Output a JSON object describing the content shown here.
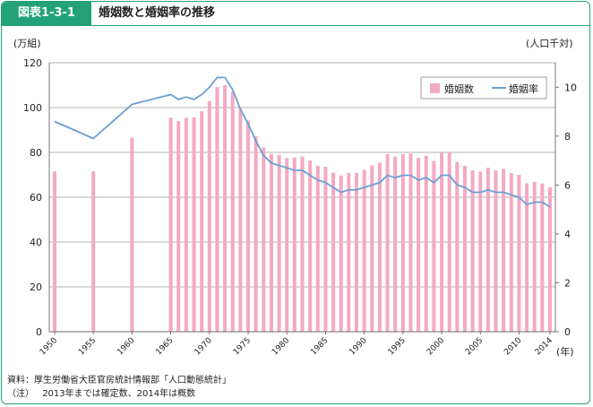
{
  "header": {
    "figure_label": "図表1-3-1",
    "title": "婚姻数と婚姻率の推移"
  },
  "colors": {
    "accent": "#23a27a",
    "bar": "#f4a9c4",
    "line": "#6b9fd4"
  },
  "footer": {
    "source": "資料：厚生労働省大臣官房統計情報部「人口動態統計」",
    "note_label": "（注）",
    "note": "2013年までは確定数、2014年は概数"
  },
  "chart_data": {
    "type": "bar+line",
    "title": "",
    "y_left_unit": "(万組)",
    "y_right_unit": "(人口千対)",
    "x_unit": "(年)",
    "ylim_left": [
      0,
      120
    ],
    "yticks_left": [
      "0",
      "20",
      "40",
      "60",
      "80",
      "100",
      "120"
    ],
    "ylim_right": [
      0,
      11
    ],
    "yticks_right": [
      "0",
      "2",
      "4",
      "6",
      "8",
      "10"
    ],
    "x_tick_labels": [
      "1950",
      "1955",
      "1960",
      "1965",
      "1970",
      "1975",
      "1980",
      "1985",
      "1990",
      "1995",
      "2000",
      "2005",
      "2010",
      "2014"
    ],
    "legend_position": "top-right",
    "grid": "horizontal",
    "years": [
      1950,
      1951,
      1952,
      1953,
      1954,
      1955,
      1956,
      1957,
      1958,
      1959,
      1960,
      1961,
      1962,
      1963,
      1964,
      1965,
      1966,
      1967,
      1968,
      1969,
      1970,
      1971,
      1972,
      1973,
      1974,
      1975,
      1976,
      1977,
      1978,
      1979,
      1980,
      1981,
      1982,
      1983,
      1984,
      1985,
      1986,
      1987,
      1988,
      1989,
      1990,
      1991,
      1992,
      1993,
      1994,
      1995,
      1996,
      1997,
      1998,
      1999,
      2000,
      2001,
      2002,
      2003,
      2004,
      2005,
      2006,
      2007,
      2008,
      2009,
      2010,
      2011,
      2012,
      2013,
      2014
    ],
    "series": [
      {
        "name": "婚姻数",
        "kind": "bar",
        "axis": "left",
        "plot_years": [
          1950,
          1955,
          1960,
          1965,
          1966,
          1967,
          1968,
          1969,
          1970,
          1971,
          1972,
          1973,
          1974,
          1975,
          1976,
          1977,
          1978,
          1979,
          1980,
          1981,
          1982,
          1983,
          1984,
          1985,
          1986,
          1987,
          1988,
          1989,
          1990,
          1991,
          1992,
          1993,
          1994,
          1995,
          1996,
          1997,
          1998,
          1999,
          2000,
          2001,
          2002,
          2003,
          2004,
          2005,
          2006,
          2007,
          2008,
          2009,
          2010,
          2011,
          2012,
          2013,
          2014
        ],
        "values": [
          71.5,
          71.5,
          86.6,
          95.5,
          94.0,
          95.4,
          95.6,
          98.4,
          102.9,
          109.1,
          110.0,
          107.2,
          100.1,
          94.2,
          87.2,
          82.2,
          79.3,
          78.9,
          77.5,
          77.7,
          78.2,
          76.3,
          74.0,
          73.6,
          71.0,
          69.7,
          70.8,
          70.8,
          72.2,
          74.2,
          75.4,
          79.2,
          78.2,
          79.2,
          79.5,
          77.6,
          78.5,
          76.2,
          79.8,
          80.0,
          75.7,
          74.0,
          72.0,
          71.4,
          73.1,
          72.0,
          72.6,
          70.8,
          70.0,
          66.2,
          66.9,
          66.1,
          64.4
        ]
      },
      {
        "name": "婚姻率",
        "kind": "line",
        "axis": "right",
        "values": [
          8.6,
          7.9,
          9.3,
          9.7,
          9.5,
          9.6,
          9.5,
          9.7,
          10.0,
          10.4,
          10.4,
          9.9,
          9.1,
          8.5,
          7.8,
          7.2,
          6.9,
          6.8,
          6.7,
          6.6,
          6.6,
          6.4,
          6.2,
          6.1,
          5.9,
          5.7,
          5.8,
          5.8,
          5.9,
          6.0,
          6.1,
          6.4,
          6.3,
          6.4,
          6.4,
          6.2,
          6.3,
          6.1,
          6.4,
          6.4,
          6.0,
          5.9,
          5.7,
          5.7,
          5.8,
          5.7,
          5.7,
          5.6,
          5.5,
          5.2,
          5.3,
          5.3,
          5.1
        ]
      }
    ]
  }
}
